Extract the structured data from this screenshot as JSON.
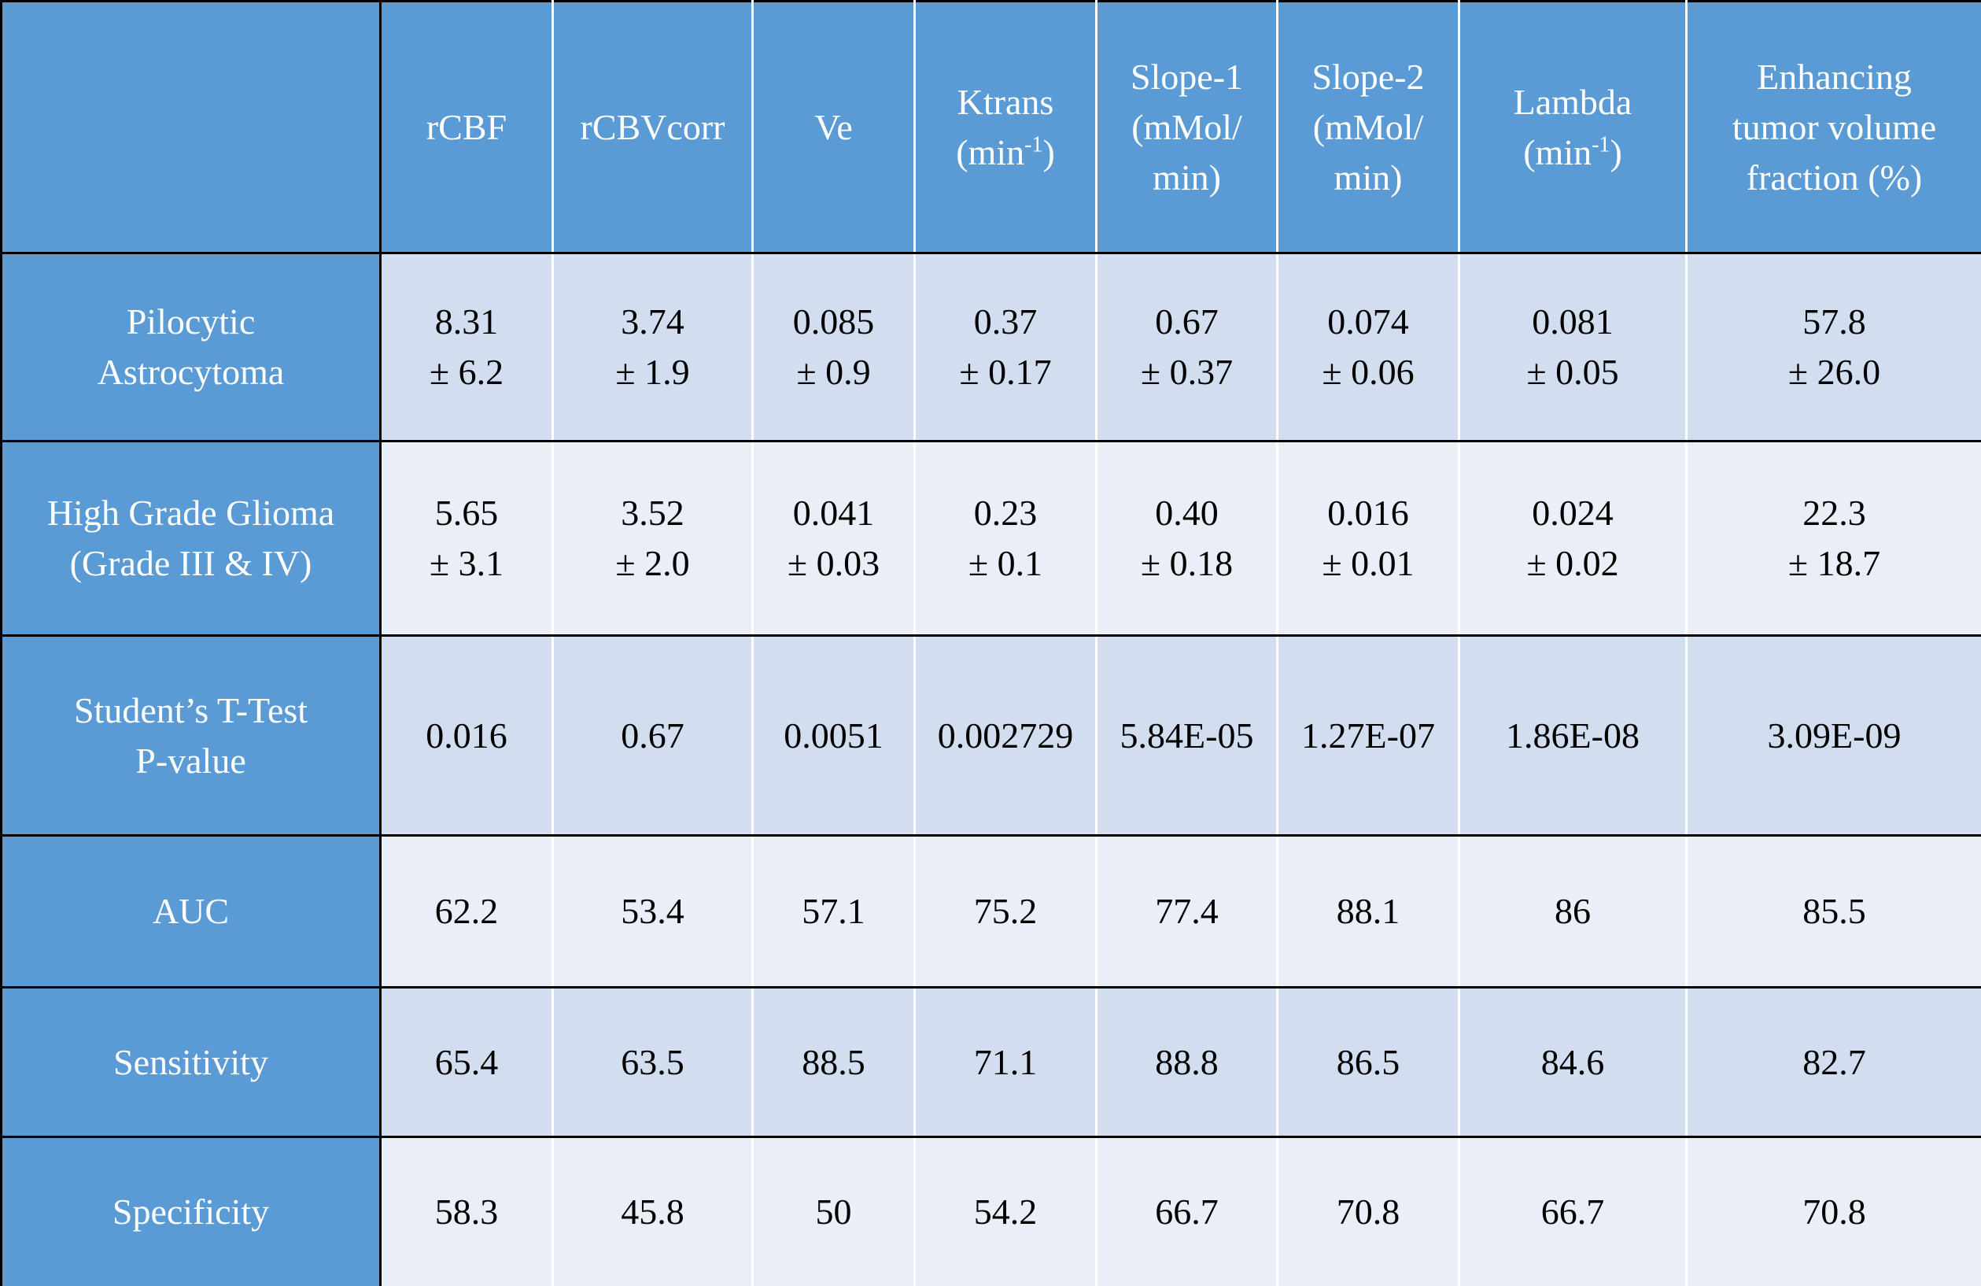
{
  "table": {
    "headers": [
      {
        "lines": [
          "rCBF"
        ]
      },
      {
        "lines": [
          "rCBVcorr"
        ]
      },
      {
        "lines": [
          "Ve"
        ]
      },
      {
        "lines": [
          "Ktrans"
        ],
        "unit": "(min",
        "sup": "-1",
        "close": ")"
      },
      {
        "lines": [
          "Slope-1",
          "(mMol/",
          "min)"
        ]
      },
      {
        "lines": [
          "Slope-2",
          "(mMol/",
          "min)"
        ]
      },
      {
        "lines": [
          "Lambda"
        ],
        "unit": "(min",
        "sup": "-1",
        "close": ")"
      },
      {
        "lines": [
          "Enhancing",
          "tumor volume",
          "fraction (%)"
        ]
      }
    ],
    "rows": [
      {
        "label": [
          "Pilocytic",
          "Astrocytoma"
        ],
        "cells": [
          [
            "8.31",
            "± 6.2"
          ],
          [
            "3.74",
            "± 1.9"
          ],
          [
            "0.085",
            "± 0.9"
          ],
          [
            "0.37",
            "± 0.17"
          ],
          [
            "0.67",
            "± 0.37"
          ],
          [
            "0.074",
            "± 0.06"
          ],
          [
            "0.081",
            "± 0.05"
          ],
          [
            "57.8",
            "± 26.0"
          ]
        ]
      },
      {
        "label": [
          "High Grade Glioma",
          "(Grade III & IV)"
        ],
        "cells": [
          [
            "5.65",
            "± 3.1"
          ],
          [
            "3.52",
            "± 2.0"
          ],
          [
            "0.041",
            "± 0.03"
          ],
          [
            "0.23",
            "± 0.1"
          ],
          [
            "0.40",
            "± 0.18"
          ],
          [
            "0.016",
            "± 0.01"
          ],
          [
            "0.024",
            "± 0.02"
          ],
          [
            "22.3",
            "± 18.7"
          ]
        ]
      },
      {
        "label": [
          "Student’s T-Test",
          "P-value"
        ],
        "cells": [
          [
            "0.016"
          ],
          [
            "0.67"
          ],
          [
            "0.0051"
          ],
          [
            "0.002729"
          ],
          [
            "5.84E-05"
          ],
          [
            "1.27E-07"
          ],
          [
            "1.86E-08"
          ],
          [
            "3.09E-09"
          ]
        ]
      },
      {
        "label": [
          "AUC"
        ],
        "cells": [
          [
            "62.2"
          ],
          [
            "53.4"
          ],
          [
            "57.1"
          ],
          [
            "75.2"
          ],
          [
            "77.4"
          ],
          [
            "88.1"
          ],
          [
            "86"
          ],
          [
            "85.5"
          ]
        ]
      },
      {
        "label": [
          "Sensitivity"
        ],
        "cells": [
          [
            "65.4"
          ],
          [
            "63.5"
          ],
          [
            "88.5"
          ],
          [
            "71.1"
          ],
          [
            "88.8"
          ],
          [
            "86.5"
          ],
          [
            "84.6"
          ],
          [
            "82.7"
          ]
        ]
      },
      {
        "label": [
          "Specificity"
        ],
        "cells": [
          [
            "58.3"
          ],
          [
            "45.8"
          ],
          [
            "50"
          ],
          [
            "54.2"
          ],
          [
            "66.7"
          ],
          [
            "70.8"
          ],
          [
            "66.7"
          ],
          [
            "70.8"
          ]
        ]
      }
    ]
  }
}
